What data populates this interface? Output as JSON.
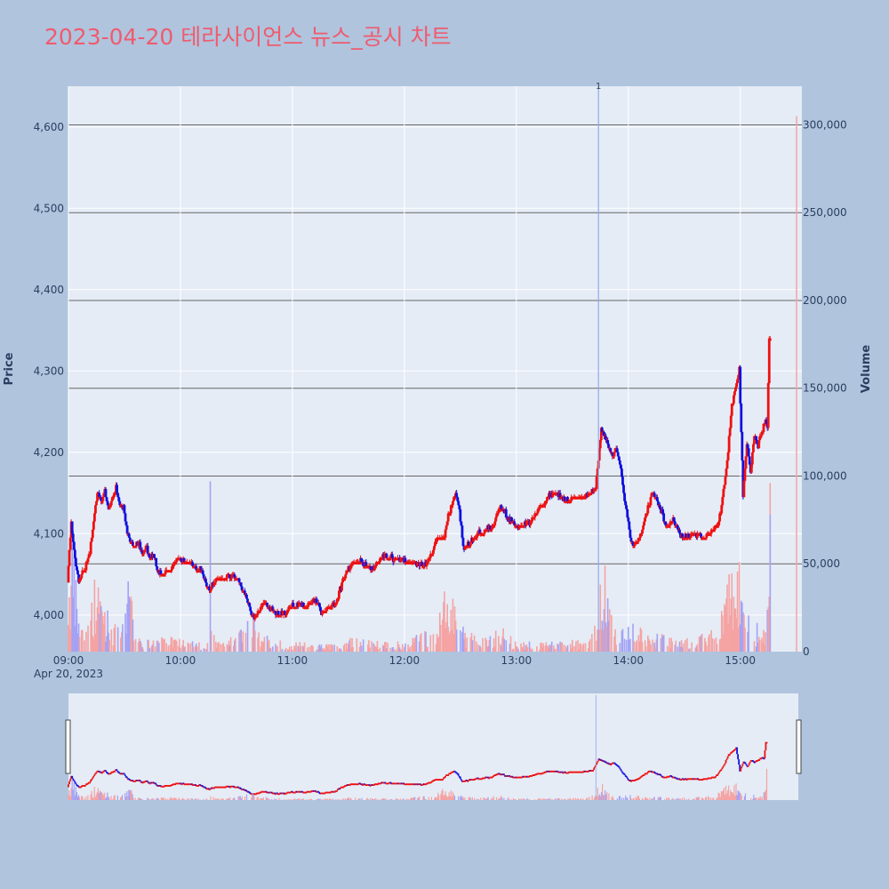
{
  "title": "2023-04-20 테라사이언스 뉴스_공시 차트",
  "chart_data": {
    "type": "candlestick",
    "x_label": "",
    "x_sublabel": "Apr 20, 2023",
    "y_label": "Price",
    "y2_label": "Volume",
    "x_ticks": [
      "09:00",
      "10:00",
      "11:00",
      "12:00",
      "13:00",
      "14:00",
      "15:00"
    ],
    "x_range": [
      "09:00",
      "15:33"
    ],
    "price_ticks": [
      4000,
      4100,
      4200,
      4300,
      4400,
      4500,
      4600
    ],
    "price_tick_labels": [
      "4,000",
      "4,100",
      "4,200",
      "4,300",
      "4,400",
      "4,500",
      "4,600"
    ],
    "price_range": [
      3955,
      4650
    ],
    "volume_ticks": [
      0,
      50000,
      100000,
      150000,
      200000,
      250000,
      300000
    ],
    "volume_tick_labels": [
      "0",
      "50,000",
      "100,000",
      "150,000",
      "200,000",
      "250,000",
      "300,000"
    ],
    "volume_range": [
      0,
      322000
    ],
    "news_marker": {
      "label": "1",
      "time": "13:44"
    },
    "colors": {
      "up": "#ee1111",
      "down": "#1111dd",
      "up_volume": "#f5a3a3",
      "down_volume": "#a3a3f5",
      "marker": "#8ea8f0"
    },
    "price_keypoints": [
      [
        "09:00",
        4040
      ],
      [
        "09:02",
        4115
      ],
      [
        "09:04",
        4070
      ],
      [
        "09:06",
        4040
      ],
      [
        "09:08",
        4050
      ],
      [
        "09:10",
        4060
      ],
      [
        "09:12",
        4080
      ],
      [
        "09:14",
        4115
      ],
      [
        "09:16",
        4150
      ],
      [
        "09:18",
        4140
      ],
      [
        "09:20",
        4150
      ],
      [
        "09:22",
        4130
      ],
      [
        "09:24",
        4145
      ],
      [
        "09:26",
        4155
      ],
      [
        "09:28",
        4135
      ],
      [
        "09:30",
        4130
      ],
      [
        "09:32",
        4100
      ],
      [
        "09:34",
        4090
      ],
      [
        "09:36",
        4085
      ],
      [
        "09:38",
        4090
      ],
      [
        "09:40",
        4075
      ],
      [
        "09:42",
        4085
      ],
      [
        "09:44",
        4070
      ],
      [
        "09:46",
        4075
      ],
      [
        "09:48",
        4055
      ],
      [
        "09:52",
        4050
      ],
      [
        "09:56",
        4060
      ],
      [
        "10:00",
        4070
      ],
      [
        "10:04",
        4065
      ],
      [
        "10:08",
        4060
      ],
      [
        "10:12",
        4055
      ],
      [
        "10:14",
        4040
      ],
      [
        "10:16",
        4030
      ],
      [
        "10:20",
        4045
      ],
      [
        "10:24",
        4045
      ],
      [
        "10:28",
        4050
      ],
      [
        "10:32",
        4040
      ],
      [
        "10:34",
        4030
      ],
      [
        "10:36",
        4020
      ],
      [
        "10:38",
        4005
      ],
      [
        "10:40",
        3995
      ],
      [
        "10:42",
        4005
      ],
      [
        "10:46",
        4015
      ],
      [
        "10:50",
        4005
      ],
      [
        "10:54",
        4000
      ],
      [
        "10:58",
        4005
      ],
      [
        "11:00",
        4010
      ],
      [
        "11:04",
        4015
      ],
      [
        "11:08",
        4010
      ],
      [
        "11:12",
        4020
      ],
      [
        "11:14",
        4015
      ],
      [
        "11:16",
        4005
      ],
      [
        "11:20",
        4010
      ],
      [
        "11:24",
        4015
      ],
      [
        "11:28",
        4045
      ],
      [
        "11:30",
        4055
      ],
      [
        "11:34",
        4065
      ],
      [
        "11:38",
        4065
      ],
      [
        "11:42",
        4055
      ],
      [
        "11:46",
        4065
      ],
      [
        "11:50",
        4075
      ],
      [
        "11:54",
        4070
      ],
      [
        "11:58",
        4070
      ],
      [
        "12:02",
        4065
      ],
      [
        "12:06",
        4065
      ],
      [
        "12:10",
        4060
      ],
      [
        "12:14",
        4070
      ],
      [
        "12:18",
        4095
      ],
      [
        "12:22",
        4095
      ],
      [
        "12:24",
        4120
      ],
      [
        "12:26",
        4135
      ],
      [
        "12:28",
        4150
      ],
      [
        "12:30",
        4130
      ],
      [
        "12:32",
        4080
      ],
      [
        "12:36",
        4090
      ],
      [
        "12:40",
        4100
      ],
      [
        "12:44",
        4105
      ],
      [
        "12:48",
        4110
      ],
      [
        "12:52",
        4135
      ],
      [
        "12:56",
        4120
      ],
      [
        "13:00",
        4110
      ],
      [
        "13:04",
        4110
      ],
      [
        "13:08",
        4115
      ],
      [
        "13:12",
        4130
      ],
      [
        "13:16",
        4140
      ],
      [
        "13:20",
        4150
      ],
      [
        "13:24",
        4145
      ],
      [
        "13:28",
        4140
      ],
      [
        "13:32",
        4145
      ],
      [
        "13:36",
        4145
      ],
      [
        "13:40",
        4150
      ],
      [
        "13:43",
        4155
      ],
      [
        "13:44",
        4180
      ],
      [
        "13:46",
        4230
      ],
      [
        "13:48",
        4220
      ],
      [
        "13:50",
        4205
      ],
      [
        "13:52",
        4195
      ],
      [
        "13:54",
        4205
      ],
      [
        "13:56",
        4185
      ],
      [
        "13:58",
        4150
      ],
      [
        "14:00",
        4120
      ],
      [
        "14:02",
        4090
      ],
      [
        "14:04",
        4085
      ],
      [
        "14:06",
        4095
      ],
      [
        "14:08",
        4105
      ],
      [
        "14:10",
        4125
      ],
      [
        "14:12",
        4140
      ],
      [
        "14:14",
        4150
      ],
      [
        "14:16",
        4140
      ],
      [
        "14:18",
        4130
      ],
      [
        "14:20",
        4115
      ],
      [
        "14:22",
        4105
      ],
      [
        "14:24",
        4120
      ],
      [
        "14:26",
        4110
      ],
      [
        "14:28",
        4100
      ],
      [
        "14:32",
        4095
      ],
      [
        "14:36",
        4100
      ],
      [
        "14:40",
        4095
      ],
      [
        "14:44",
        4100
      ],
      [
        "14:48",
        4110
      ],
      [
        "14:50",
        4125
      ],
      [
        "14:52",
        4160
      ],
      [
        "14:54",
        4200
      ],
      [
        "14:56",
        4260
      ],
      [
        "14:58",
        4280
      ],
      [
        "15:00",
        4300
      ],
      [
        "15:02",
        4150
      ],
      [
        "15:04",
        4210
      ],
      [
        "15:06",
        4180
      ],
      [
        "15:08",
        4220
      ],
      [
        "15:10",
        4210
      ],
      [
        "15:12",
        4225
      ],
      [
        "15:14",
        4240
      ],
      [
        "15:15",
        4230
      ],
      [
        "15:16",
        4340
      ]
    ],
    "volume_keypoints": [
      [
        "09:00",
        28000
      ],
      [
        "09:02",
        45000
      ],
      [
        "09:04",
        30000
      ],
      [
        "09:06",
        10000
      ],
      [
        "09:10",
        12000
      ],
      [
        "09:14",
        30000
      ],
      [
        "09:18",
        25000
      ],
      [
        "09:22",
        15000
      ],
      [
        "09:26",
        10000
      ],
      [
        "09:30",
        12000
      ],
      [
        "09:32",
        35000
      ],
      [
        "09:36",
        8000
      ],
      [
        "09:40",
        5000
      ],
      [
        "09:50",
        6000
      ],
      [
        "10:00",
        6000
      ],
      [
        "10:14",
        3000
      ],
      [
        "10:16",
        15000
      ],
      [
        "10:20",
        4000
      ],
      [
        "10:34",
        10000
      ],
      [
        "10:38",
        18000
      ],
      [
        "10:42",
        8000
      ],
      [
        "10:50",
        5000
      ],
      [
        "11:00",
        4000
      ],
      [
        "11:20",
        3000
      ],
      [
        "11:30",
        6000
      ],
      [
        "11:40",
        5000
      ],
      [
        "12:00",
        4000
      ],
      [
        "12:18",
        12000
      ],
      [
        "12:24",
        35000
      ],
      [
        "12:28",
        20000
      ],
      [
        "12:32",
        10000
      ],
      [
        "12:40",
        5000
      ],
      [
        "12:52",
        10000
      ],
      [
        "13:00",
        4000
      ],
      [
        "13:20",
        4000
      ],
      [
        "13:40",
        6000
      ],
      [
        "13:44",
        18000
      ],
      [
        "13:46",
        45000
      ],
      [
        "13:50",
        20000
      ],
      [
        "13:56",
        10000
      ],
      [
        "14:00",
        15000
      ],
      [
        "14:06",
        12000
      ],
      [
        "14:12",
        8000
      ],
      [
        "14:24",
        6000
      ],
      [
        "14:36",
        6000
      ],
      [
        "14:48",
        10000
      ],
      [
        "14:52",
        25000
      ],
      [
        "14:56",
        45000
      ],
      [
        "15:00",
        38000
      ],
      [
        "15:02",
        20000
      ],
      [
        "15:08",
        12000
      ],
      [
        "15:14",
        8000
      ],
      [
        "15:16",
        75000
      ]
    ]
  }
}
